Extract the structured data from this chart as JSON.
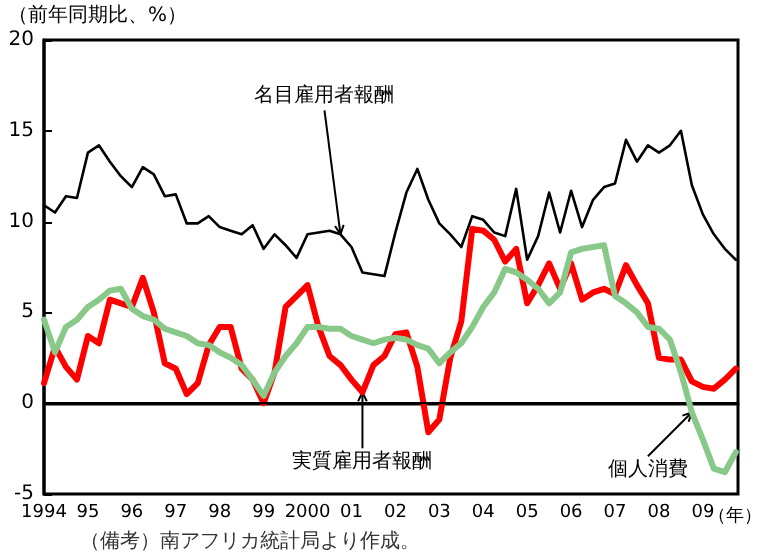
{
  "chart_data": {
    "type": "line",
    "ylabel": "（前年同期比、%）",
    "xlabel": "（年）",
    "x": [
      1994,
      1994.25,
      1994.5,
      1994.75,
      1995,
      1995.25,
      1995.5,
      1995.75,
      1996,
      1996.25,
      1996.5,
      1996.75,
      1997,
      1997.25,
      1997.5,
      1997.75,
      1998,
      1998.25,
      1998.5,
      1998.75,
      1999,
      1999.25,
      1999.5,
      1999.75,
      2000,
      2000.25,
      2000.5,
      2000.75,
      2001,
      2001.25,
      2001.5,
      2001.75,
      2002,
      2002.25,
      2002.5,
      2002.75,
      2003,
      2003.25,
      2003.5,
      2003.75,
      2004,
      2004.25,
      2004.5,
      2004.75,
      2005,
      2005.25,
      2005.5,
      2005.75,
      2006,
      2006.25,
      2006.5,
      2006.75,
      2007,
      2007.25,
      2007.5,
      2007.75,
      2008,
      2008.25,
      2008.5,
      2008.75,
      2009,
      2009.25,
      2009.5,
      2009.75
    ],
    "series": [
      {
        "color": "#000000",
        "values": [
          10.9,
          10.5,
          11.4,
          11.3,
          13.8,
          14.2,
          13.3,
          12.5,
          11.9,
          13.0,
          12.6,
          11.4,
          11.5,
          9.9,
          9.9,
          10.3,
          9.7,
          9.5,
          9.3,
          9.8,
          8.5,
          9.3,
          8.7,
          8.0,
          9.3,
          9.4,
          9.5,
          9.3,
          8.6,
          7.2,
          7.1,
          7.0,
          9.4,
          11.6,
          12.9,
          11.2,
          9.9,
          9.3,
          8.6,
          10.3,
          10.1,
          9.4,
          9.2,
          11.8,
          7.9,
          9.2,
          11.6,
          9.4,
          11.7,
          9.7,
          11.2,
          11.9,
          12.1,
          14.5,
          13.3,
          14.2,
          13.8,
          14.2,
          15.0,
          12.0,
          10.4,
          9.3,
          8.5,
          7.9
        ]
      },
      {
        "color": "#ff0000",
        "values": [
          1.1,
          3.1,
          2.0,
          1.3,
          3.7,
          3.3,
          5.7,
          5.5,
          5.3,
          6.9,
          5.0,
          2.2,
          1.9,
          0.5,
          1.1,
          3.2,
          4.2,
          4.2,
          1.9,
          1.3,
          0,
          1.7,
          5.3,
          5.9,
          6.5,
          4.2,
          2.6,
          2.1,
          1.3,
          0.6,
          2.1,
          2.6,
          3.8,
          3.9,
          2.0,
          -1.6,
          -0.9,
          2.5,
          4.5,
          9.6,
          9.5,
          9.0,
          7.8,
          8.5,
          5.5,
          6.5,
          7.7,
          6.3,
          7.7,
          5.7,
          6.1,
          6.3,
          6.0,
          7.6,
          6.5,
          5.5,
          2.5,
          2.4,
          2.4,
          1.2,
          0.9,
          0.8,
          1.3,
          1.9
        ]
      },
      {
        "color": "#88c888",
        "values": [
          4.6,
          2.8,
          4.2,
          4.6,
          5.3,
          5.7,
          6.2,
          6.3,
          5.2,
          4.8,
          4.6,
          4.1,
          3.9,
          3.7,
          3.3,
          3.2,
          2.8,
          2.5,
          2.1,
          1.3,
          0.4,
          1.7,
          2.6,
          3.3,
          4.2,
          4.2,
          4.1,
          4.1,
          3.7,
          3.5,
          3.3,
          3.5,
          3.6,
          3.5,
          3.2,
          3.0,
          2.2,
          2.8,
          3.3,
          4.2,
          5.3,
          6.1,
          7.4,
          7.2,
          6.8,
          6.3,
          5.5,
          6.1,
          8.3,
          8.5,
          8.6,
          8.7,
          5.9,
          5.5,
          5.0,
          4.2,
          4.1,
          3.5,
          1.7,
          -0.5,
          -2.0,
          -3.6,
          -3.8,
          -2.7
        ]
      }
    ],
    "xlim": [
      1994,
      2009.8
    ],
    "xticks": [
      {
        "value": 1994,
        "label": "1994"
      },
      {
        "value": 1995,
        "label": "95"
      },
      {
        "value": 1996,
        "label": "96"
      },
      {
        "value": 1997,
        "label": "97"
      },
      {
        "value": 1998,
        "label": "98"
      },
      {
        "value": 1999,
        "label": "99"
      },
      {
        "value": 2000,
        "label": "2000"
      },
      {
        "value": 2001,
        "label": "01"
      },
      {
        "value": 2002,
        "label": "02"
      },
      {
        "value": 2003,
        "label": "03"
      },
      {
        "value": 2004,
        "label": "04"
      },
      {
        "value": 2005,
        "label": "05"
      },
      {
        "value": 2006,
        "label": "06"
      },
      {
        "value": 2007,
        "label": "07"
      },
      {
        "value": 2008,
        "label": "08"
      },
      {
        "value": 2009,
        "label": "09"
      }
    ],
    "ylim": [
      -5,
      20
    ],
    "yticks": [
      -5,
      0,
      5,
      10,
      15,
      20
    ],
    "ref_lines": [
      {
        "axis": "y",
        "value": 0,
        "color": "#000000"
      }
    ],
    "annotations": [
      {
        "text": "名目雇用者報酬",
        "x": 2000.75,
        "y": 9.3
      },
      {
        "text": "実質雇用者報酬",
        "x": 2001.25,
        "y": 0.6
      },
      {
        "text": "個人消費",
        "x": 2008.75,
        "y": -0.5
      },
      "（備考）南アフリカ統計局より作成。"
    ],
    "grid": false,
    "marker": "none",
    "line_style": "solid"
  }
}
